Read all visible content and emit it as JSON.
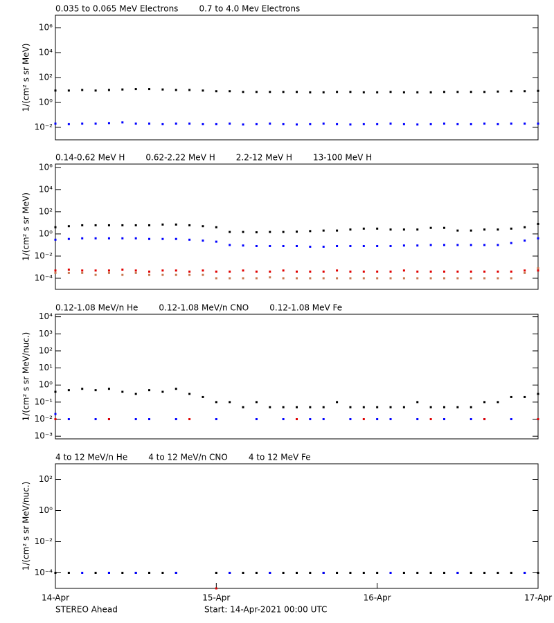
{
  "chart_data": [
    {
      "type": "scatter",
      "y_label": "1/(cm² s sr MeV)",
      "log_scale": true,
      "xlim": [
        0,
        72
      ],
      "ylim": [
        0.001,
        10000000
      ],
      "yticks": [
        {
          "value": 0.01,
          "label": "10⁻²"
        },
        {
          "value": 1,
          "label": "10⁰"
        },
        {
          "value": 100,
          "label": "10²"
        },
        {
          "value": 10000,
          "label": "10⁴"
        },
        {
          "value": 1000000,
          "label": "10⁶"
        }
      ],
      "x": [
        0,
        2,
        4,
        6,
        8,
        10,
        12,
        14,
        16,
        18,
        20,
        22,
        24,
        26,
        28,
        30,
        32,
        34,
        36,
        38,
        40,
        42,
        44,
        46,
        48,
        50,
        52,
        54,
        56,
        58,
        60,
        62,
        64,
        66,
        68,
        70,
        72
      ],
      "series": [
        {
          "name": "0.035 to 0.065 MeV Electrons",
          "color": "#000000",
          "values": [
            9,
            9,
            10,
            9,
            10,
            11,
            12,
            12,
            11,
            10,
            10,
            9,
            8,
            8,
            7,
            7,
            7,
            7,
            7,
            6.5,
            6.5,
            7,
            7,
            6.5,
            6.5,
            7,
            6.5,
            6.5,
            6.5,
            7,
            7,
            7,
            7,
            7.5,
            8,
            8,
            8.5
          ]
        },
        {
          "name": "0.7 to 4.0 Mev Electrons",
          "color": "#0000ff",
          "values": [
            0.02,
            0.018,
            0.02,
            0.02,
            0.022,
            0.025,
            0.02,
            0.02,
            0.018,
            0.02,
            0.02,
            0.018,
            0.018,
            0.02,
            0.017,
            0.018,
            0.02,
            0.018,
            0.017,
            0.018,
            0.02,
            0.018,
            0.017,
            0.018,
            0.018,
            0.02,
            0.018,
            0.017,
            0.018,
            0.02,
            0.018,
            0.018,
            0.02,
            0.018,
            0.02,
            0.02,
            0.02
          ]
        }
      ]
    },
    {
      "type": "scatter",
      "y_label": "1/(cm² s sr MeV)",
      "log_scale": true,
      "xlim": [
        0,
        72
      ],
      "ylim": [
        1e-05,
        2000000
      ],
      "yticks": [
        {
          "value": 0.0001,
          "label": "10⁻⁴"
        },
        {
          "value": 0.01,
          "label": "10⁻²"
        },
        {
          "value": 1,
          "label": "10⁰"
        },
        {
          "value": 100,
          "label": "10²"
        },
        {
          "value": 10000,
          "label": "10⁴"
        },
        {
          "value": 1000000,
          "label": "10⁶"
        }
      ],
      "x": [
        0,
        2,
        4,
        6,
        8,
        10,
        12,
        14,
        16,
        18,
        20,
        22,
        24,
        26,
        28,
        30,
        32,
        34,
        36,
        38,
        40,
        42,
        44,
        46,
        48,
        50,
        52,
        54,
        56,
        58,
        60,
        62,
        64,
        66,
        68,
        70,
        72
      ],
      "series": [
        {
          "name": "0.14-0.62 MeV H",
          "color": "#000000",
          "values": [
            4,
            5,
            6,
            6,
            6,
            6,
            6,
            6,
            7,
            7,
            6,
            5,
            4,
            1.5,
            1.5,
            1.4,
            1.5,
            1.5,
            1.6,
            1.8,
            2,
            2,
            2.5,
            3,
            3,
            2.5,
            2.5,
            2.5,
            3.5,
            3.5,
            2,
            2,
            2.5,
            2.5,
            3,
            4,
            8
          ]
        },
        {
          "name": "0.62-2.22 MeV H",
          "color": "#0000ff",
          "values": [
            0.3,
            0.35,
            0.4,
            0.4,
            0.4,
            0.4,
            0.4,
            0.35,
            0.35,
            0.35,
            0.3,
            0.25,
            0.2,
            0.1,
            0.09,
            0.08,
            0.08,
            0.08,
            0.08,
            0.07,
            0.07,
            0.08,
            0.08,
            0.08,
            0.08,
            0.08,
            0.09,
            0.09,
            0.1,
            0.1,
            0.1,
            0.1,
            0.1,
            0.1,
            0.15,
            0.25,
            0.4
          ]
        },
        {
          "name": "2.2-12 MeV H",
          "color": "#c87850",
          "values": [
            0.0003,
            0.0003,
            0.0003,
            0.0002,
            0.0003,
            0.0002,
            0.0003,
            0.0002,
            0.0002,
            0.0002,
            0.0002,
            0.0002,
            0.0001,
            0.0001,
            0.0001,
            0.0001,
            0.00012,
            0.0001,
            0.0001,
            0.0001,
            0.0001,
            0.0001,
            0.0001,
            0.0001,
            0.0001,
            0.0001,
            0.0001,
            0.0001,
            0.0001,
            0.0001,
            0.0001,
            0.0001,
            0.0001,
            0.0001,
            0.0001,
            0.0003,
            0.0008
          ]
        },
        {
          "name": "13-100 MeV H",
          "color": "#e00000",
          "values": [
            0.0005,
            0.0006,
            0.0005,
            0.0005,
            0.0005,
            0.0006,
            0.0005,
            0.0004,
            0.0005,
            0.0005,
            0.0004,
            0.0005,
            0.0004,
            0.0004,
            0.0005,
            0.0004,
            0.0004,
            0.0005,
            0.0004,
            0.0004,
            0.0004,
            0.0005,
            0.0004,
            0.0004,
            0.0004,
            0.0004,
            0.0005,
            0.0004,
            0.0004,
            0.0004,
            0.0004,
            0.0004,
            0.0004,
            0.0004,
            0.0004,
            0.0005,
            0.0005
          ]
        }
      ]
    },
    {
      "type": "scatter",
      "y_label": "1/(cm² s sr MeV/nuc.)",
      "log_scale": true,
      "xlim": [
        0,
        72
      ],
      "ylim": [
        0.0007,
        14000
      ],
      "yticks": [
        {
          "value": 0.001,
          "label": "10⁻³"
        },
        {
          "value": 0.01,
          "label": "10⁻²"
        },
        {
          "value": 0.1,
          "label": "10⁻¹"
        },
        {
          "value": 1,
          "label": "10⁰"
        },
        {
          "value": 10,
          "label": "10¹"
        },
        {
          "value": 100,
          "label": "10²"
        },
        {
          "value": 1000,
          "label": "10³"
        },
        {
          "value": 10000,
          "label": "10⁴"
        }
      ],
      "x": [
        0,
        2,
        4,
        6,
        8,
        10,
        12,
        14,
        16,
        18,
        20,
        22,
        24,
        26,
        28,
        30,
        32,
        34,
        36,
        38,
        40,
        42,
        44,
        46,
        48,
        50,
        52,
        54,
        56,
        58,
        60,
        62,
        64,
        66,
        68,
        70,
        72
      ],
      "series": [
        {
          "name": "0.12-1.08 MeV/n He",
          "color": "#000000",
          "values": [
            0.4,
            0.5,
            0.6,
            0.5,
            0.6,
            0.4,
            0.3,
            0.5,
            0.4,
            0.6,
            0.3,
            0.2,
            0.1,
            0.1,
            0.05,
            0.1,
            0.05,
            0.05,
            0.05,
            0.05,
            0.05,
            0.1,
            0.05,
            0.05,
            0.05,
            0.05,
            0.05,
            0.1,
            0.05,
            0.05,
            0.05,
            0.05,
            0.1,
            0.1,
            0.2,
            0.2,
            0.3
          ]
        },
        {
          "name": "0.12-1.08 MeV/n CNO",
          "color": "#0000ff",
          "values": [
            0.02,
            0.01,
            null,
            0.01,
            0.01,
            null,
            0.01,
            0.01,
            null,
            0.01,
            null,
            null,
            0.01,
            null,
            null,
            0.01,
            null,
            0.01,
            null,
            0.01,
            0.01,
            null,
            0.01,
            null,
            0.01,
            0.01,
            null,
            0.01,
            null,
            0.01,
            null,
            0.01,
            0.01,
            null,
            0.01,
            null,
            0.01
          ]
        },
        {
          "name": "0.12-1.08 MeV Fe",
          "color": "#e00000",
          "values": [
            0.01,
            null,
            null,
            null,
            0.01,
            null,
            null,
            null,
            null,
            null,
            0.01,
            null,
            null,
            null,
            null,
            null,
            null,
            null,
            0.01,
            null,
            null,
            null,
            null,
            0.01,
            null,
            null,
            null,
            null,
            0.01,
            null,
            null,
            null,
            0.01,
            null,
            null,
            null,
            0.01
          ]
        }
      ]
    },
    {
      "type": "scatter",
      "y_label": "1/(cm² s sr MeV/nuc.)",
      "log_scale": true,
      "xlim": [
        0,
        72
      ],
      "ylim": [
        1e-05,
        1000
      ],
      "yticks": [
        {
          "value": 0.0001,
          "label": "10⁻⁴"
        },
        {
          "value": 0.01,
          "label": "10⁻²"
        },
        {
          "value": 1,
          "label": "10⁰"
        },
        {
          "value": 100,
          "label": "10²"
        }
      ],
      "xticks": [
        {
          "value": 0,
          "label": "14-Apr"
        },
        {
          "value": 24,
          "label": "15-Apr"
        },
        {
          "value": 48,
          "label": "16-Apr"
        },
        {
          "value": 72,
          "label": "17-Apr"
        }
      ],
      "annotations": [
        "STEREO Ahead",
        "Start: 14-Apr-2021 00:00 UTC"
      ],
      "x": [
        0,
        2,
        4,
        6,
        8,
        10,
        12,
        14,
        16,
        18,
        20,
        22,
        24,
        26,
        28,
        30,
        32,
        34,
        36,
        38,
        40,
        42,
        44,
        46,
        48,
        50,
        52,
        54,
        56,
        58,
        60,
        62,
        64,
        66,
        68,
        70,
        72
      ],
      "series": [
        {
          "name": "4 to 12 MeV/n He",
          "color": "#000000",
          "values": [
            0.0001,
            0.0001,
            null,
            0.0001,
            0.0001,
            0.0001,
            0.0001,
            0.0001,
            0.0001,
            0.0001,
            null,
            null,
            0.0001,
            0.0001,
            0.0001,
            0.0001,
            0.0001,
            0.0001,
            0.0001,
            0.0001,
            0.0001,
            0.0001,
            0.0001,
            0.0001,
            0.0001,
            0.0001,
            0.0001,
            0.0001,
            0.0001,
            0.0001,
            0.0001,
            0.0001,
            0.0001,
            0.0001,
            0.0001,
            0.0001,
            0.0001
          ]
        },
        {
          "name": "4 to 12 MeV/n CNO",
          "color": "#0000ff",
          "values": [
            null,
            null,
            0.0001,
            null,
            0.0001,
            null,
            0.0001,
            null,
            null,
            0.0001,
            null,
            null,
            null,
            0.0001,
            null,
            null,
            0.0001,
            null,
            null,
            null,
            0.0001,
            null,
            null,
            null,
            null,
            0.0001,
            null,
            null,
            null,
            null,
            0.0001,
            null,
            null,
            null,
            null,
            0.0001,
            null
          ]
        },
        {
          "name": "4 to 12 MeV Fe",
          "color": "#e00000",
          "values": [
            null,
            null,
            null,
            null,
            null,
            null,
            null,
            null,
            null,
            null,
            null,
            null,
            1e-05,
            null,
            null,
            null,
            null,
            null,
            null,
            null,
            null,
            null,
            null,
            null,
            null,
            null,
            null,
            null,
            null,
            null,
            null,
            null,
            null,
            null,
            null,
            null,
            null
          ]
        }
      ]
    }
  ]
}
